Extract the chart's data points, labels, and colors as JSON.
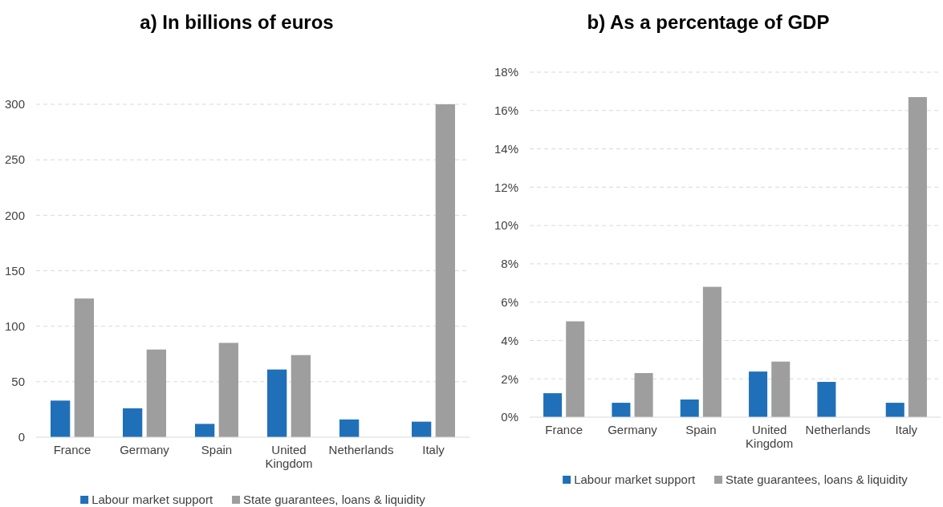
{
  "chart_data": [
    {
      "type": "bar",
      "title": "a) In billions of euros",
      "categories": [
        "France",
        "Germany",
        "Spain",
        "United Kingdom",
        "Netherlands",
        "Italy"
      ],
      "series": [
        {
          "name": "Labour market support",
          "color": "#1f70b8",
          "values": [
            33,
            26,
            12,
            61,
            16,
            14
          ]
        },
        {
          "name": "State guarantees, loans & liquidity",
          "color": "#9e9e9e",
          "values": [
            125,
            79,
            85,
            74,
            null,
            300
          ]
        }
      ],
      "ylim": [
        0,
        300
      ],
      "yticks": [
        0,
        50,
        100,
        150,
        200,
        250,
        300
      ],
      "grid": "y",
      "legend": "bottom"
    },
    {
      "type": "bar",
      "title": "b) As a percentage of GDP",
      "categories": [
        "France",
        "Germany",
        "Spain",
        "United Kingdom",
        "Netherlands",
        "Italy"
      ],
      "series": [
        {
          "name": "Labour market support",
          "color": "#1f70b8",
          "values": [
            1.25,
            0.75,
            0.92,
            2.38,
            1.84,
            0.75
          ]
        },
        {
          "name": "State guarantees, loans & liquidity",
          "color": "#9e9e9e",
          "values": [
            5.0,
            2.3,
            6.8,
            2.9,
            null,
            16.7
          ]
        }
      ],
      "ylim": [
        0,
        18
      ],
      "yticks": [
        {
          "value": 0,
          "label": "0%"
        },
        {
          "value": 2,
          "label": "2%"
        },
        {
          "value": 4,
          "label": "4%"
        },
        {
          "value": 6,
          "label": "6%"
        },
        {
          "value": 8,
          "label": "8%"
        },
        {
          "value": 10,
          "label": "10%"
        },
        {
          "value": 12,
          "label": "12%"
        },
        {
          "value": 14,
          "label": "14%"
        },
        {
          "value": 16,
          "label": "16%"
        },
        {
          "value": 18,
          "label": "18%"
        }
      ],
      "grid": "y",
      "legend": "bottom"
    }
  ]
}
